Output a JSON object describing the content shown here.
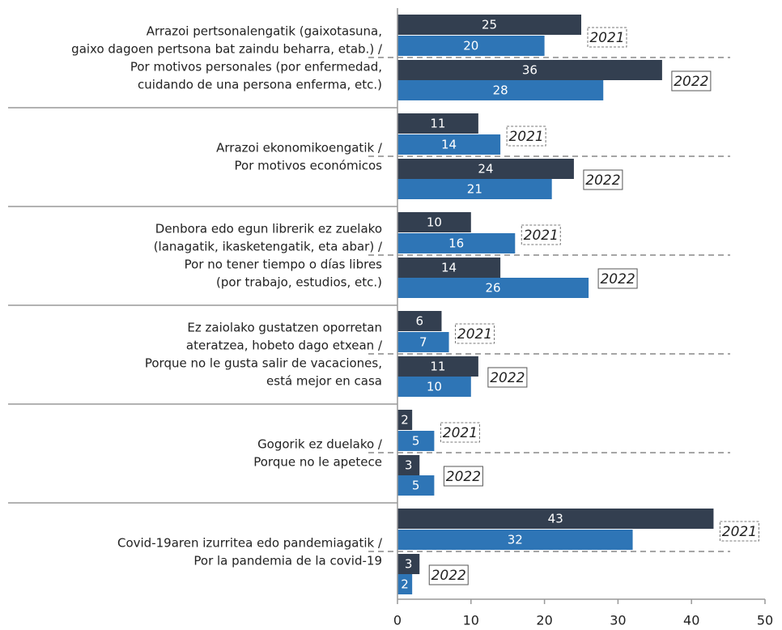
{
  "chart_data": {
    "type": "bar",
    "categories": [
      [
        "Arrazoi pertsonalengatik (gaixotasuna,",
        "gaixo dagoen pertsona bat zaindu beharra, etab.) /",
        "Por motivos personales (por enfermedad,",
        "cuidando de una persona enferma, etc.)"
      ],
      [
        "Arrazoi ekonomikoengatik /",
        "Por motivos económicos"
      ],
      [
        "Denbora edo egun librerik ez zuelako",
        "(lanagatik, ikasketengatik, eta abar) /",
        "Por no tener tiempo o días libres",
        "(por trabajo, estudios, etc.)"
      ],
      [
        "Ez zaiolako gustatzen oporretan",
        "ateratzea, hobeto dago etxean /",
        "Porque no le gusta salir de vacaciones,",
        "está mejor en casa"
      ],
      [
        "Gogorik ez duelako /",
        "Porque no le apetece"
      ],
      [
        "Covid-19aren izurritea edo pandemiagatik /",
        "Por la pandemia de la covid-19"
      ]
    ],
    "groups": [
      {
        "label": "2021",
        "series": [
          {
            "color": "#333f50",
            "values": [
              25,
              11,
              10,
              6,
              2,
              43
            ]
          },
          {
            "color": "#2e75b6",
            "values": [
              20,
              14,
              16,
              7,
              5,
              32
            ]
          }
        ]
      },
      {
        "label": "2022",
        "series": [
          {
            "color": "#333f50",
            "values": [
              36,
              24,
              14,
              11,
              3,
              3
            ]
          },
          {
            "color": "#2e75b6",
            "values": [
              28,
              21,
              26,
              10,
              5,
              2
            ]
          }
        ]
      }
    ],
    "xlim": [
      0,
      50
    ],
    "xticks": [
      0,
      10,
      20,
      30,
      40,
      50
    ]
  }
}
